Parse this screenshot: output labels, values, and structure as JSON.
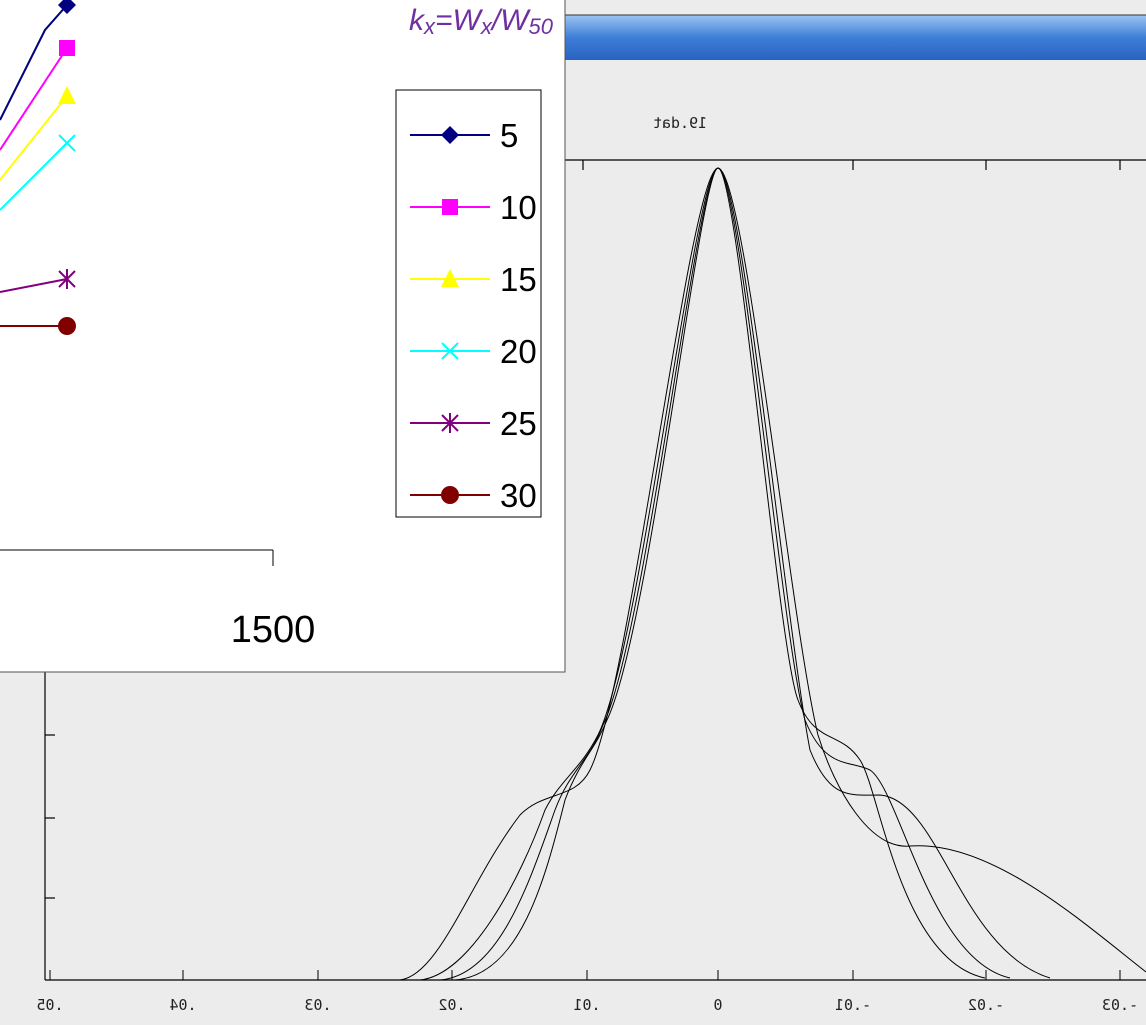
{
  "window": {
    "title": "19.dat",
    "x_ticks": [
      ".05",
      ".04",
      ".03",
      ".02",
      ".01",
      "0",
      "-.01",
      "-.02",
      "-.03"
    ]
  },
  "chart": {
    "title": {
      "k": "k",
      "sub1": "x",
      "eq": "=W",
      "sub2": "x",
      "div": "/W",
      "sub3": "50"
    },
    "x_tick": "1500",
    "legend": [
      {
        "label": "5",
        "color": "#000080",
        "marker": "diamond"
      },
      {
        "label": "10",
        "color": "#ff00ff",
        "marker": "square"
      },
      {
        "label": "15",
        "color": "#ffff00",
        "marker": "triangle"
      },
      {
        "label": "20",
        "color": "#00ffff",
        "marker": "x"
      },
      {
        "label": "25",
        "color": "#800080",
        "marker": "star"
      },
      {
        "label": "30",
        "color": "#800000",
        "marker": "circle"
      }
    ]
  }
}
